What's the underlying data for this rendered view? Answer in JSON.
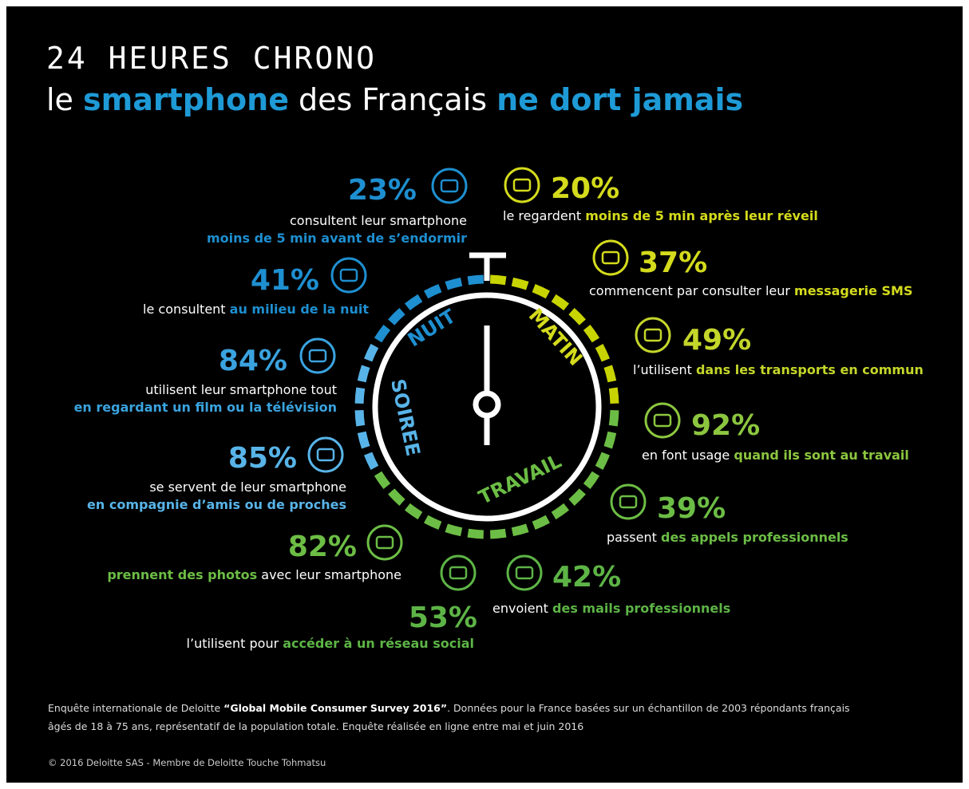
{
  "title": "24 HEURES CHRONO",
  "subtitle": [
    {
      "text": "le ",
      "accent": false
    },
    {
      "text": "smartphone",
      "accent": true
    },
    {
      "text": " des Français ",
      "accent": false
    },
    {
      "text": "ne dort jamais",
      "accent": true
    }
  ],
  "subtitle_color": "#1e9ad6",
  "clock_labels": [
    {
      "text": "NUIT",
      "color": "#1e8fd0"
    },
    {
      "text": "MATIN",
      "color": "#d4db1c"
    },
    {
      "text": "SOIREE",
      "color": "#58b4e8"
    },
    {
      "text": "TRAVAIL",
      "color": "#6cbd45"
    }
  ],
  "stats": [
    {
      "value": "23%",
      "color": "#1e8fd0",
      "lines": [
        [
          {
            "text": "consultent leur smartphone",
            "accent": false
          }
        ],
        [
          {
            "text": "moins de 5 min avant de s’endormir",
            "accent": true
          }
        ]
      ]
    },
    {
      "value": "20%",
      "color": "#d4db1c",
      "lines": [
        [
          {
            "text": "le regardent ",
            "accent": false
          },
          {
            "text": "moins de 5 min après leur réveil",
            "accent": true
          }
        ]
      ]
    },
    {
      "value": "37%",
      "color": "#d4db1c",
      "lines": [
        [
          {
            "text": "commencent par consulter leur ",
            "accent": false
          },
          {
            "text": "messagerie SMS",
            "accent": true
          }
        ]
      ]
    },
    {
      "value": "41%",
      "color": "#1e8fd0",
      "lines": [
        [
          {
            "text": "le consultent ",
            "accent": false
          },
          {
            "text": "au milieu de la nuit",
            "accent": true
          }
        ]
      ]
    },
    {
      "value": "49%",
      "color": "#c4d62a",
      "lines": [
        [
          {
            "text": "l’utilisent ",
            "accent": false
          },
          {
            "text": "dans les transports en commun",
            "accent": true
          }
        ]
      ]
    },
    {
      "value": "84%",
      "color": "#3aa3df",
      "lines": [
        [
          {
            "text": "utilisent leur smartphone tout",
            "accent": false
          }
        ],
        [
          {
            "text": "en regardant un film ou la télévision",
            "accent": true
          }
        ]
      ]
    },
    {
      "value": "92%",
      "color": "#8cc63f",
      "lines": [
        [
          {
            "text": "en font usage ",
            "accent": false
          },
          {
            "text": "quand ils sont au travail",
            "accent": true
          }
        ]
      ]
    },
    {
      "value": "85%",
      "color": "#58b4e8",
      "lines": [
        [
          {
            "text": "se servent de leur smartphone",
            "accent": false
          }
        ],
        [
          {
            "text": "en compagnie d’amis ou de proches",
            "accent": true
          }
        ]
      ]
    },
    {
      "value": "39%",
      "color": "#6cbd45",
      "lines": [
        [
          {
            "text": "passent ",
            "accent": false
          },
          {
            "text": "des appels professionnels",
            "accent": true
          }
        ]
      ]
    },
    {
      "value": "82%",
      "color": "#6cbd45",
      "lines": [
        [
          {
            "text": "prennent des photos",
            "accent": true
          },
          {
            "text": " avec leur smartphone",
            "accent": false
          }
        ]
      ]
    },
    {
      "value": "42%",
      "color": "#5db446",
      "lines": [
        [
          {
            "text": "envoient ",
            "accent": false
          },
          {
            "text": "des mails professionnels",
            "accent": true
          }
        ]
      ]
    },
    {
      "value": "53%",
      "color": "#5db446",
      "lines": [
        [
          {
            "text": "l’utilisent pour ",
            "accent": false
          },
          {
            "text": "accéder à un réseau social",
            "accent": true
          }
        ]
      ]
    }
  ],
  "footer": [
    [
      {
        "text": "Enquête internationale de Deloitte ",
        "bold": false
      },
      {
        "text": "“Global Mobile Consumer Survey 2016”",
        "bold": true
      },
      {
        "text": ". Données pour la France basées sur un échantillon de 2003 répondants français",
        "bold": false
      }
    ],
    [
      {
        "text": "âgés de 18 à 75 ans, représentatif de la population totale. Enquête réalisée en ligne entre mai et juin 2016",
        "bold": false
      }
    ]
  ],
  "copyright": "© 2016 Deloitte SAS - Membre de Deloitte Touche Tohmatsu"
}
